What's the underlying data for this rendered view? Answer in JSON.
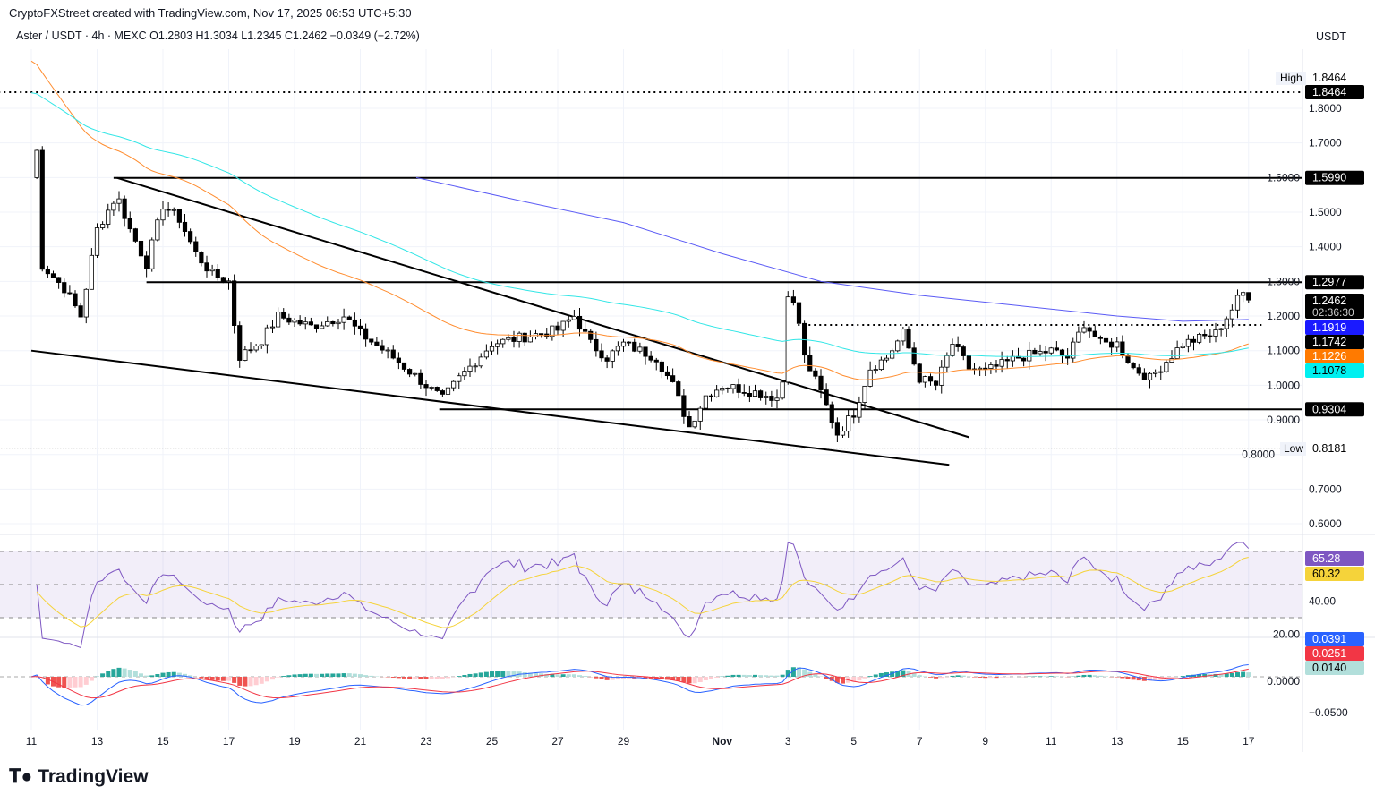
{
  "header": {
    "credit": "CryptoFXStreet created with TradingView.com, Nov 17, 2025 06:53 UTC+5:30",
    "legend": "Aster / USDT · 4h · MEXC  O1.2803  H1.3034  L1.2345  C1.2462  −0.0349 (−2.72%)",
    "currency": "USDT"
  },
  "logo": "TradingView",
  "colors": {
    "up": "#26a69a",
    "down": "#ef5350",
    "ema50": "#ff8c2e",
    "ema100": "#32e6e6",
    "sma200": "#5b5bf5",
    "rsi": "#7e57c2",
    "rsi_ma": "#f5d33a",
    "macd": "#2962ff",
    "signal": "#f23645"
  },
  "chart_data": {
    "type": "candlestick",
    "title": "Aster / USDT 4h",
    "x_labels": [
      {
        "day": 0,
        "label": "11"
      },
      {
        "day": 2,
        "label": "13"
      },
      {
        "day": 4,
        "label": "15"
      },
      {
        "day": 6,
        "label": "17"
      },
      {
        "day": 8,
        "label": "19"
      },
      {
        "day": 10,
        "label": "21"
      },
      {
        "day": 12,
        "label": "23"
      },
      {
        "day": 14,
        "label": "25"
      },
      {
        "day": 16,
        "label": "27"
      },
      {
        "day": 18,
        "label": "29"
      },
      {
        "day": 21,
        "label": "Nov"
      },
      {
        "day": 23,
        "label": "3"
      },
      {
        "day": 25,
        "label": "5"
      },
      {
        "day": 27,
        "label": "7"
      },
      {
        "day": 29,
        "label": "9"
      },
      {
        "day": 31,
        "label": "11"
      },
      {
        "day": 33,
        "label": "13"
      },
      {
        "day": 35,
        "label": "15"
      },
      {
        "day": 37,
        "label": "17"
      }
    ],
    "price_ticks": [
      "1.8000",
      "1.7000",
      "1.6000",
      "1.5000",
      "1.4000",
      "1.3000",
      "1.2000",
      "1.1000",
      "1.0000",
      "0.9000",
      "0.8000",
      "0.7000",
      "0.6000"
    ],
    "ylim": [
      0.55,
      1.93
    ],
    "close_keypoints": [
      [
        0,
        1.6
      ],
      [
        0.1,
        1.84
      ],
      [
        0.3,
        1.35
      ],
      [
        1,
        1.28
      ],
      [
        1.5,
        1.2
      ],
      [
        2,
        1.45
      ],
      [
        2.6,
        1.55
      ],
      [
        3,
        1.45
      ],
      [
        3.5,
        1.35
      ],
      [
        4,
        1.52
      ],
      [
        4.5,
        1.48
      ],
      [
        5,
        1.38
      ],
      [
        5.5,
        1.32
      ],
      [
        6,
        1.3
      ],
      [
        6.3,
        1.08
      ],
      [
        7,
        1.13
      ],
      [
        7.5,
        1.2
      ],
      [
        8.5,
        1.17
      ],
      [
        9.5,
        1.2
      ],
      [
        10,
        1.15
      ],
      [
        11,
        1.08
      ],
      [
        12,
        1.0
      ],
      [
        12.5,
        0.96
      ],
      [
        13,
        1.02
      ],
      [
        14,
        1.12
      ],
      [
        15,
        1.14
      ],
      [
        16,
        1.16
      ],
      [
        16.5,
        1.2
      ],
      [
        17,
        1.12
      ],
      [
        17.5,
        1.08
      ],
      [
        18,
        1.12
      ],
      [
        19,
        1.08
      ],
      [
        19.5,
        1.0
      ],
      [
        20,
        0.88
      ],
      [
        20.5,
        0.97
      ],
      [
        21,
        1.0
      ],
      [
        22,
        0.98
      ],
      [
        22.8,
        0.96
      ],
      [
        23,
        1.27
      ],
      [
        23.3,
        1.2
      ],
      [
        23.5,
        1.08
      ],
      [
        24,
        0.98
      ],
      [
        24.5,
        0.86
      ],
      [
        25,
        0.92
      ],
      [
        25.5,
        1.05
      ],
      [
        26,
        1.08
      ],
      [
        26.5,
        1.15
      ],
      [
        27,
        1.02
      ],
      [
        27.5,
        1.0
      ],
      [
        28,
        1.12
      ],
      [
        28.5,
        1.05
      ],
      [
        29,
        1.04
      ],
      [
        30,
        1.08
      ],
      [
        31,
        1.1
      ],
      [
        31.5,
        1.08
      ],
      [
        32,
        1.18
      ],
      [
        32.5,
        1.12
      ],
      [
        33,
        1.12
      ],
      [
        33.5,
        1.05
      ],
      [
        34,
        1.02
      ],
      [
        34.5,
        1.07
      ],
      [
        35,
        1.12
      ],
      [
        36,
        1.15
      ],
      [
        36.5,
        1.22
      ],
      [
        36.8,
        1.27
      ],
      [
        37,
        1.2462
      ]
    ],
    "sma200_keypoints": [
      [
        11.7,
        1.6
      ],
      [
        15,
        1.53
      ],
      [
        18,
        1.47
      ],
      [
        21,
        1.38
      ],
      [
        24,
        1.3
      ],
      [
        27,
        1.26
      ],
      [
        30,
        1.23
      ],
      [
        33,
        1.2
      ],
      [
        35,
        1.185
      ],
      [
        37,
        1.19
      ]
    ],
    "levels": [
      {
        "price": 1.8464,
        "style": "dotted",
        "from": -1
      },
      {
        "price": 1.599,
        "style": "solid",
        "from": 2.5
      },
      {
        "price": 1.2977,
        "style": "solid",
        "from": 3.5
      },
      {
        "price": 1.1742,
        "style": "dotted",
        "from": 23.3
      },
      {
        "price": 0.9304,
        "style": "solid",
        "from": 12.4
      },
      {
        "price": 0.8181,
        "style": "thin-dotted",
        "from": -1
      }
    ],
    "trendlines": [
      [
        [
          2.6,
          1.599
        ],
        [
          28.5,
          0.85
        ]
      ],
      [
        [
          0,
          1.1
        ],
        [
          27.9,
          0.77
        ]
      ]
    ],
    "price_labels": [
      {
        "text": "1.8464",
        "bg": "#000000",
        "fg": "#ffffff",
        "price": 1.8464
      },
      {
        "text": "1.5990",
        "bg": "#000000",
        "fg": "#ffffff",
        "price": 1.599
      },
      {
        "text": "1.2977",
        "bg": "#000000",
        "fg": "#ffffff",
        "price": 1.2977
      },
      {
        "text": "1.1919",
        "bg": "#1a1aff",
        "fg": "#ffffff",
        "price": 1.1919
      },
      {
        "text": "1.1742",
        "bg": "#000000",
        "fg": "#ffffff",
        "price": 1.1742
      },
      {
        "text": "1.1226",
        "bg": "#ff7a00",
        "fg": "#ffffff",
        "price": 1.1226
      },
      {
        "text": "1.1078",
        "bg": "#00f0f0",
        "fg": "#000000",
        "price": 1.1078
      },
      {
        "text": "0.9304",
        "bg": "#000000",
        "fg": "#ffffff",
        "price": 0.9304
      }
    ],
    "current": {
      "price": "1.2462",
      "countdown": "02:36:30"
    },
    "high": {
      "label": "High",
      "value": "1.8464"
    },
    "low": {
      "label": "Low",
      "value": "0.8181"
    },
    "rsi": {
      "ticks": [
        "40.00",
        "20.00"
      ],
      "levels": [
        70,
        50,
        30
      ],
      "value": "65.28",
      "ma": "60.32"
    },
    "macd": {
      "ticks": [
        "0.0000",
        "−0.0500"
      ],
      "macd": "0.0391",
      "signal": "0.0251",
      "hist": "0.0140"
    }
  }
}
